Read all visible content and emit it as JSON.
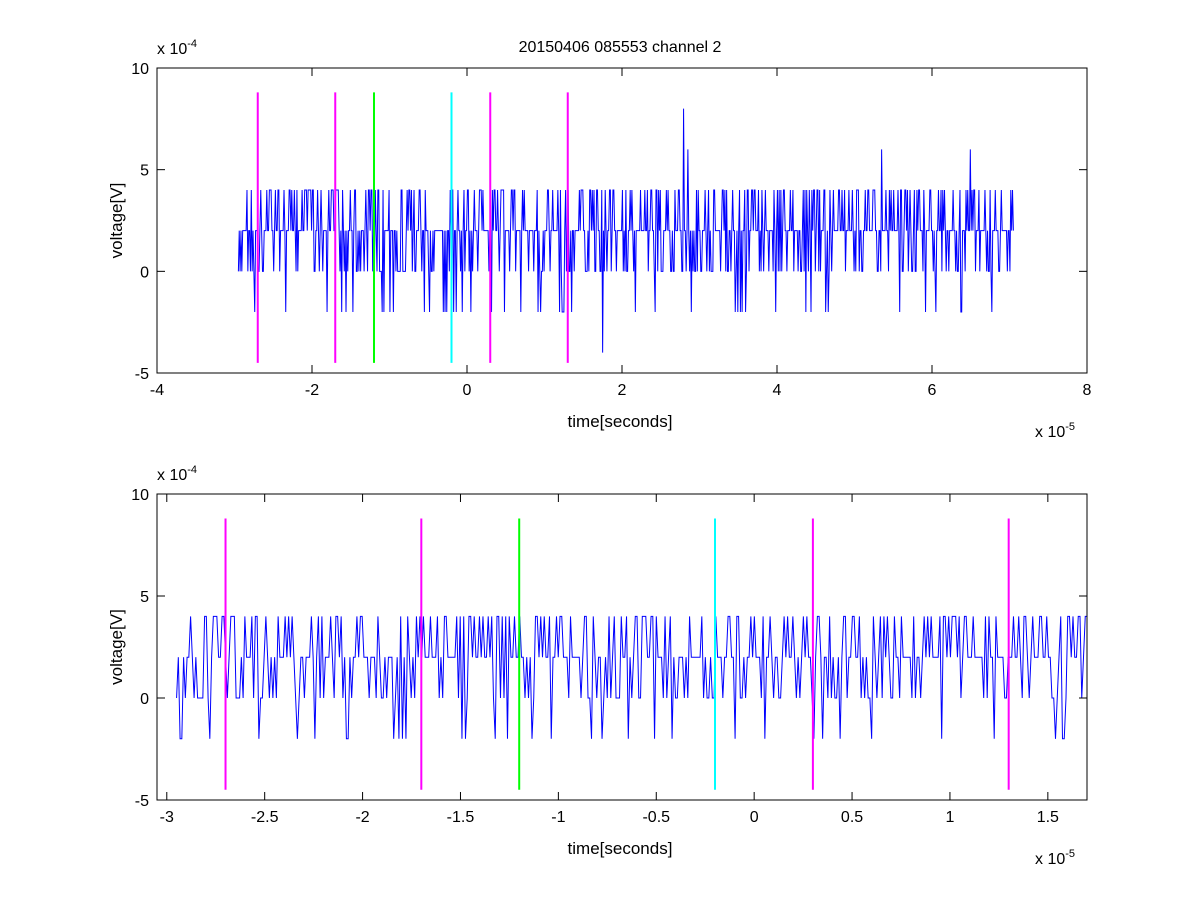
{
  "figure_title": "20150406 085553 channel 2",
  "colors": {
    "signal": "#0000ff",
    "magenta": "#ff00ff",
    "green": "#00ff00",
    "cyan": "#00ffff",
    "axes": "#000000"
  },
  "chart_data": [
    {
      "type": "line",
      "title": "20150406 085553 channel 2",
      "xlabel": "time[seconds]",
      "ylabel": "voltage[V]",
      "x_exponent_label": "x 10^-5",
      "y_exponent_label": "x 10^-4",
      "xlim": [
        -4e-05,
        8e-05
      ],
      "ylim": [
        -0.0005,
        0.001
      ],
      "x_ticks": [
        -4e-05,
        -2e-05,
        0,
        2e-05,
        4e-05,
        6e-05,
        8e-05
      ],
      "x_tick_labels": [
        "-4",
        "-2",
        "0",
        "2",
        "4",
        "6",
        "8"
      ],
      "y_ticks": [
        -0.0005,
        0,
        0.0005,
        0.001
      ],
      "y_tick_labels": [
        "-5",
        "0",
        "5",
        "10"
      ],
      "grid": false,
      "series": [
        {
          "style": "noisy-signal",
          "color": "#0000ff",
          "x_range": [
            -2.95e-05,
            7.05e-05
          ],
          "baseline": 0.0002,
          "quantum": 0.0002,
          "levels_min": -0.0004,
          "levels_max": 0.0008,
          "notable_peaks": [
            {
              "x": 2.8e-05,
              "y": 0.0008
            },
            {
              "x": 2.85e-05,
              "y": 0.0006
            },
            {
              "x": 5.35e-05,
              "y": 0.0006
            },
            {
              "x": 6.5e-05,
              "y": 0.0006
            },
            {
              "x": 1.75e-05,
              "y": -0.0004
            }
          ]
        }
      ],
      "markers": [
        {
          "x": -2.7e-05,
          "color": "magenta"
        },
        {
          "x": -1.7e-05,
          "color": "magenta"
        },
        {
          "x": -1.2e-05,
          "color": "green"
        },
        {
          "x": -2e-06,
          "color": "cyan"
        },
        {
          "x": 3e-06,
          "color": "magenta"
        },
        {
          "x": 1.3e-05,
          "color": "magenta"
        }
      ],
      "marker_yrange": [
        -0.00045,
        0.00088
      ]
    },
    {
      "type": "line",
      "title": "",
      "xlabel": "time[seconds]",
      "ylabel": "voltage[V]",
      "x_exponent_label": "x 10^-5",
      "y_exponent_label": "x 10^-4",
      "xlim": [
        -3.05e-05,
        1.7e-05
      ],
      "ylim": [
        -0.0005,
        0.001
      ],
      "x_ticks": [
        -3e-05,
        -2.5e-05,
        -2e-05,
        -1.5e-05,
        -1e-05,
        -5e-06,
        0,
        5e-06,
        1e-05,
        1.5e-05
      ],
      "x_tick_labels": [
        "-3",
        "-2.5",
        "-2",
        "-1.5",
        "-1",
        "-0.5",
        "0",
        "0.5",
        "1",
        "1.5"
      ],
      "y_ticks": [
        -0.0005,
        0,
        0.0005,
        0.001
      ],
      "y_tick_labels": [
        "-5",
        "0",
        "5",
        "10"
      ],
      "grid": false,
      "series": [
        {
          "style": "noisy-signal",
          "color": "#0000ff",
          "x_range": [
            -2.95e-05,
            1.7e-05
          ],
          "baseline": 0.0002,
          "quantum": 0.0002,
          "levels_min": -0.0002,
          "levels_max": 0.0004,
          "notable_peaks": [
            {
              "x": -2.93e-05,
              "y": -0.0002
            },
            {
              "x": -1.8e-05,
              "y": -0.0002
            },
            {
              "x": 1.58e-05,
              "y": -0.0002
            }
          ]
        }
      ],
      "markers": [
        {
          "x": -2.7e-05,
          "color": "magenta"
        },
        {
          "x": -1.7e-05,
          "color": "magenta"
        },
        {
          "x": -1.2e-05,
          "color": "green"
        },
        {
          "x": -2e-06,
          "color": "cyan"
        },
        {
          "x": 3e-06,
          "color": "magenta"
        },
        {
          "x": 1.3e-05,
          "color": "magenta"
        }
      ],
      "marker_yrange": [
        -0.00045,
        0.00088
      ]
    }
  ]
}
